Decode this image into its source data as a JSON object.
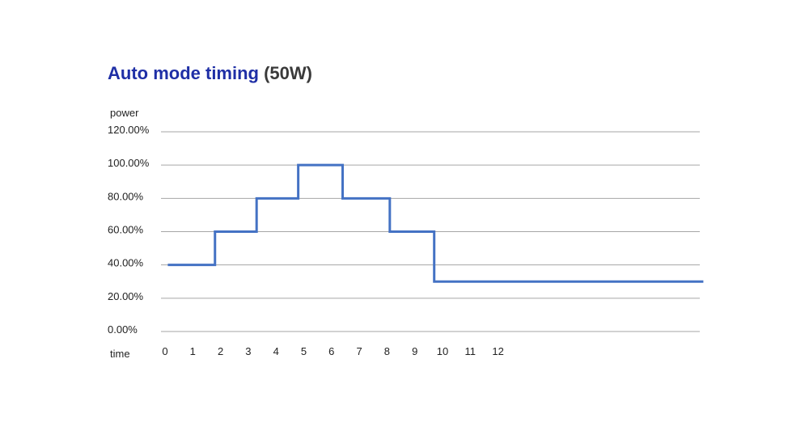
{
  "chart_data": {
    "type": "line",
    "step": true,
    "title": "Auto mode timing",
    "title_suffix": "(50W)",
    "xlabel": "time",
    "ylabel": "power",
    "x_ticks": [
      "0",
      "1",
      "2",
      "3",
      "4",
      "5",
      "6",
      "7",
      "8",
      "9",
      "10",
      "11",
      "12"
    ],
    "y_ticks": [
      "0.00%",
      "20.00%",
      "40.00%",
      "60.00%",
      "80.00%",
      "100.00%",
      "120.00%"
    ],
    "ylim": [
      0,
      120
    ],
    "grid": true,
    "colors": {
      "series": "#4472c4",
      "grid": "#a6a6a6"
    },
    "series": [
      {
        "points": [
          {
            "x": 0.1,
            "y": 40
          },
          {
            "x": 1.8,
            "y": 40
          },
          {
            "x": 1.8,
            "y": 60
          },
          {
            "x": 3.3,
            "y": 60
          },
          {
            "x": 3.3,
            "y": 80
          },
          {
            "x": 4.8,
            "y": 80
          },
          {
            "x": 4.8,
            "y": 100
          },
          {
            "x": 6.4,
            "y": 100
          },
          {
            "x": 6.4,
            "y": 80
          },
          {
            "x": 8.1,
            "y": 80
          },
          {
            "x": 8.1,
            "y": 60
          },
          {
            "x": 9.7,
            "y": 60
          },
          {
            "x": 9.7,
            "y": 30
          },
          {
            "x": 19.4,
            "y": 30
          }
        ]
      }
    ]
  }
}
